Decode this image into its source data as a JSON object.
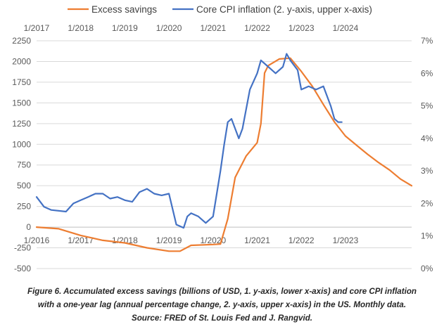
{
  "caption": {
    "line1": "Figure 6. Accumulated excess savings (billions of USD, 1. y-axis, lower x-axis) and core CPI inflation",
    "line2": "with a one-year lag (annual percentage change, 2. y-axis, upper x-axis) in the US. Monthly data.",
    "line3": "Source: FRED of St. Louis Fed and J. Rangvid."
  },
  "colors": {
    "excess_savings": "#ED7D31",
    "core_cpi": "#4472C4",
    "grid": "#d9d9d9",
    "axis_text": "#595959"
  },
  "chart_data": {
    "type": "line",
    "title": "",
    "legend": {
      "position": "top",
      "entries": [
        "Excess savings",
        "Core CPI inflation (2. y-axis, upper x-axis)"
      ]
    },
    "grid": true,
    "y1": {
      "ylim": [
        -500,
        2250
      ],
      "ticks": [
        "2250",
        "2000",
        "1750",
        "1500",
        "1250",
        "1000",
        "750",
        "500",
        "250",
        "0",
        "-250",
        "-500"
      ]
    },
    "y2": {
      "ylim": [
        0,
        7
      ],
      "ticks": [
        "7%",
        "6%",
        "5%",
        "4%",
        "3%",
        "2%",
        "1%",
        "0%"
      ]
    },
    "x_lower": {
      "range": [
        "2016-01",
        "2024-07"
      ],
      "ticks": [
        "1/2016",
        "1/2017",
        "1/2018",
        "1/2019",
        "1/2020",
        "1/2021",
        "1/2022",
        "1/2023"
      ]
    },
    "x_upper": {
      "range": [
        "2017-01",
        "2025-07"
      ],
      "ticks": [
        "1/2017",
        "1/2018",
        "1/2019",
        "1/2020",
        "1/2021",
        "1/2022",
        "1/2023",
        "1/2024"
      ]
    },
    "series": [
      {
        "name": "Excess savings",
        "axis": "y1 / lower x-axis",
        "x": [
          "2016-01",
          "2016-07",
          "2017-01",
          "2017-07",
          "2018-01",
          "2018-07",
          "2019-01",
          "2019-04",
          "2019-07",
          "2020-01",
          "2020-03",
          "2020-05",
          "2020-07",
          "2020-10",
          "2021-01",
          "2021-02",
          "2021-03",
          "2021-04",
          "2021-07",
          "2021-10",
          "2022-01",
          "2022-04",
          "2022-07",
          "2022-10",
          "2023-01",
          "2023-04",
          "2023-07",
          "2023-10",
          "2024-01",
          "2024-04",
          "2024-07"
        ],
        "values": [
          0,
          -20,
          -100,
          -160,
          -190,
          -250,
          -290,
          -290,
          -220,
          -210,
          -205,
          100,
          600,
          860,
          1020,
          1250,
          1860,
          1950,
          2030,
          2040,
          1880,
          1700,
          1480,
          1270,
          1100,
          990,
          880,
          780,
          690,
          580,
          500
        ]
      },
      {
        "name": "Core CPI inflation (2. y-axis, upper x-axis)",
        "axis": "y2 / upper x-axis",
        "x": [
          "2017-01",
          "2017-03",
          "2017-05",
          "2017-09",
          "2017-11",
          "2018-01",
          "2018-03",
          "2018-05",
          "2018-07",
          "2018-09",
          "2018-11",
          "2019-01",
          "2019-03",
          "2019-05",
          "2019-07",
          "2019-09",
          "2019-11",
          "2020-01",
          "2020-03",
          "2020-05",
          "2020-06",
          "2020-07",
          "2020-09",
          "2020-11",
          "2021-01",
          "2021-03",
          "2021-04",
          "2021-05",
          "2021-06",
          "2021-07",
          "2021-08",
          "2021-09",
          "2021-11",
          "2022-01",
          "2022-02",
          "2022-04",
          "2022-06",
          "2022-08",
          "2022-09",
          "2022-10",
          "2022-12",
          "2023-01",
          "2023-03",
          "2023-05",
          "2023-07",
          "2023-09",
          "2023-10",
          "2023-11",
          "2023-12"
        ],
        "values": [
          2.2,
          1.9,
          1.8,
          1.75,
          2.0,
          2.1,
          2.2,
          2.3,
          2.3,
          2.15,
          2.2,
          2.1,
          2.05,
          2.35,
          2.45,
          2.3,
          2.25,
          2.3,
          1.35,
          1.25,
          1.6,
          1.7,
          1.6,
          1.4,
          1.6,
          3.0,
          3.8,
          4.5,
          4.6,
          4.3,
          4.0,
          4.3,
          5.5,
          6.0,
          6.4,
          6.2,
          6.0,
          6.2,
          6.6,
          6.4,
          6.1,
          5.5,
          5.6,
          5.5,
          5.6,
          5.0,
          4.6,
          4.5,
          4.5
        ]
      }
    ]
  }
}
